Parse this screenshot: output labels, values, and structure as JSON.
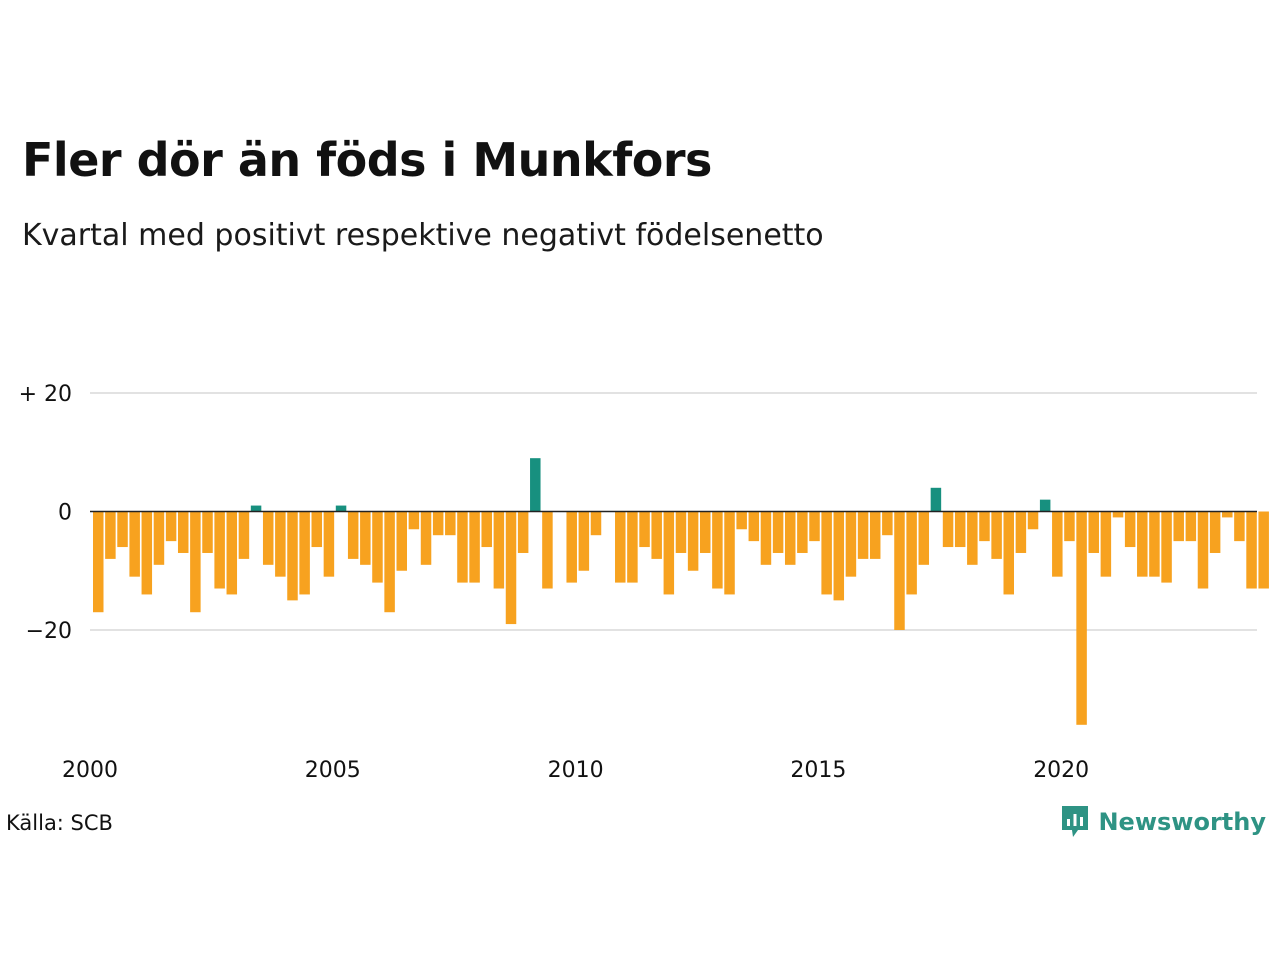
{
  "title": "Fler dör än föds i Munkfors",
  "subtitle": "Kvartal med positivt respektive negativt födelsenetto",
  "source": "Källa: SCB",
  "brand": {
    "name": "Newsworthy",
    "logo_icon": "newsworthy-bar-chart-speech-bubble-icon",
    "color": "#2e9384"
  },
  "colors": {
    "positive": "#17907f",
    "negative": "#f7a21f",
    "grid": "#e2e2e2",
    "zero_line": "#222222"
  },
  "chart_data": {
    "type": "bar",
    "title": "",
    "xlabel": "",
    "ylabel": "",
    "ylim": [
      -37,
      24
    ],
    "yticks": [
      {
        "value": 20,
        "label": "+ 20"
      },
      {
        "value": 0,
        "label": "0"
      },
      {
        "value": -20,
        "label": "−20"
      }
    ],
    "xticks": [
      "2000",
      "2005",
      "2010",
      "2015",
      "2020"
    ],
    "grid": true,
    "period": "quarterly",
    "start": "2000 Q1",
    "end": "2024 Q1",
    "series": [
      {
        "values": [
          -17,
          -8,
          -6,
          -11,
          -14,
          -9,
          -5,
          -7,
          -17,
          -7,
          -13,
          -14,
          -8,
          1,
          -9,
          -11,
          -15,
          -14,
          -6,
          -11,
          1,
          -8,
          -9,
          -12,
          -17,
          -10,
          -3,
          -9,
          -4,
          -4,
          -12,
          -12,
          -6,
          -13,
          -19,
          -7,
          9,
          -13,
          0,
          -12,
          -10,
          -4,
          0,
          -12,
          -12,
          -6,
          -8,
          -14,
          -7,
          -10,
          -7,
          -13,
          -14,
          -3,
          -5,
          -9,
          -7,
          -9,
          -7,
          -5,
          -14,
          -15,
          -11,
          -8,
          -8,
          -4,
          -20,
          -14,
          -9,
          4,
          -6,
          -6,
          -9,
          -5,
          -8,
          -14,
          -7,
          -3,
          2,
          -11,
          -5,
          -36,
          -7,
          -11,
          -1,
          -6,
          -11,
          -11,
          -12,
          -5,
          -5,
          -13,
          -7,
          -1,
          -5,
          -13,
          -13
        ]
      }
    ]
  }
}
